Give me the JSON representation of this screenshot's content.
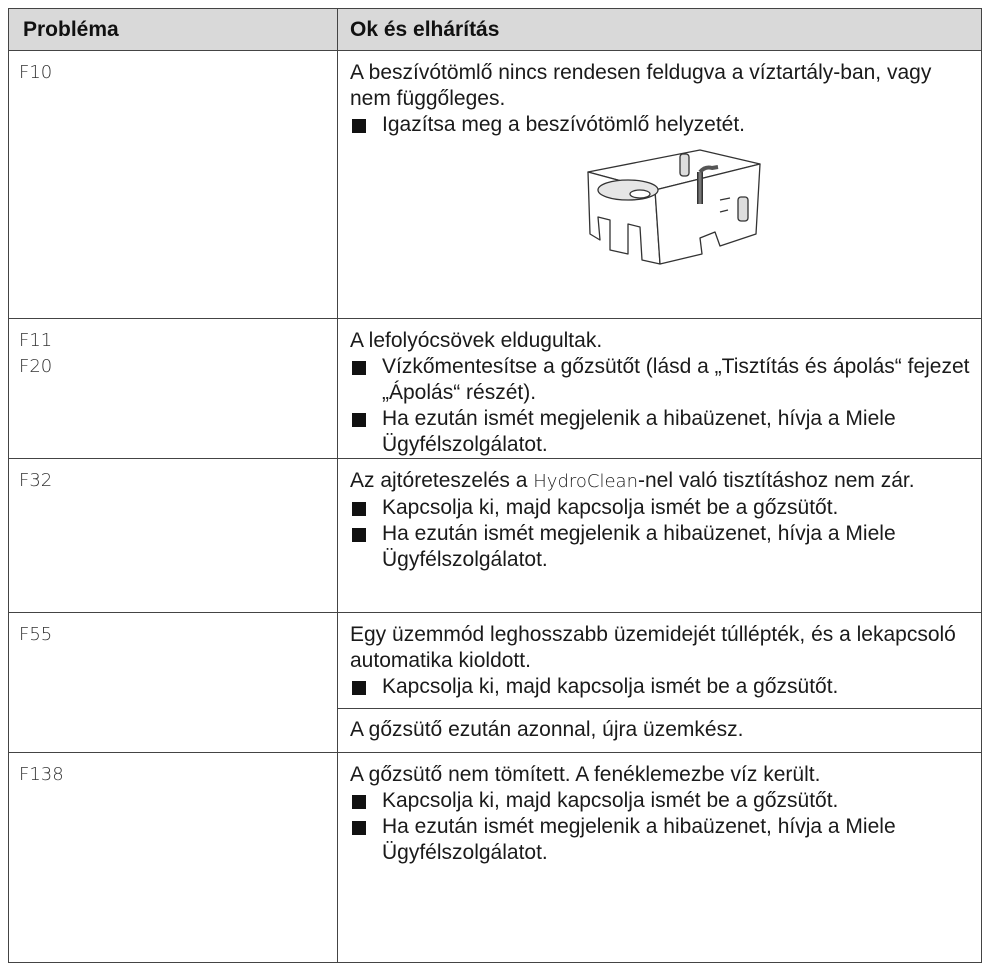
{
  "table": {
    "headers": [
      "Probléma",
      "Ok és elhárítás"
    ],
    "rows": [
      {
        "codes": [
          "F10"
        ],
        "text": "A beszívótömlő nincs rendesen feldugva a víztartály-ban, vagy nem függőleges.",
        "bullets": [
          "Igazítsa meg a beszívótömlő helyzetét."
        ]
      },
      {
        "codes": [
          "F11",
          "F20"
        ],
        "text": "A lefolyócsövek eldugultak.",
        "bullets": [
          "Vízkőmentesítse a gőzsütőt (lásd a „Tisztítás és ápolás“ fejezet „Ápolás“ részét).",
          "Ha ezután ismét megjelenik a hibaüzenet, hívja a Miele Ügyfélszolgálatot."
        ]
      },
      {
        "codes": [
          "F32"
        ],
        "text_before": "Az ajtóreteszelés a ",
        "text_highlight": "HydroClean",
        "text_after": "-nel való tisztításhoz nem zár.",
        "bullets": [
          "Kapcsolja ki, majd kapcsolja ismét be a gőzsütőt.",
          "Ha ezután ismét megjelenik a hibaüzenet, hívja a Miele Ügyfélszolgálatot."
        ]
      },
      {
        "codes": [
          "F55"
        ],
        "text": "Egy üzemmód leghosszabb üzemidejét túllépték, és a lekapcsoló automatika kioldott.",
        "bullets": [
          "Kapcsolja ki, majd kapcsolja ismét be a gőzsütőt."
        ],
        "note": "A gőzsütő ezután azonnal, újra üzemkész."
      },
      {
        "codes": [
          "F138"
        ],
        "text": "A gőzsütő nem tömített. A fenéklemezbe víz került.",
        "bullets": [
          "Kapcsolja ki, majd kapcsolja ismét be a gőzsütőt.",
          "Ha ezután ismét megjelenik a hibaüzenet, hívja a Miele Ügyfélszolgálatot."
        ]
      }
    ]
  }
}
